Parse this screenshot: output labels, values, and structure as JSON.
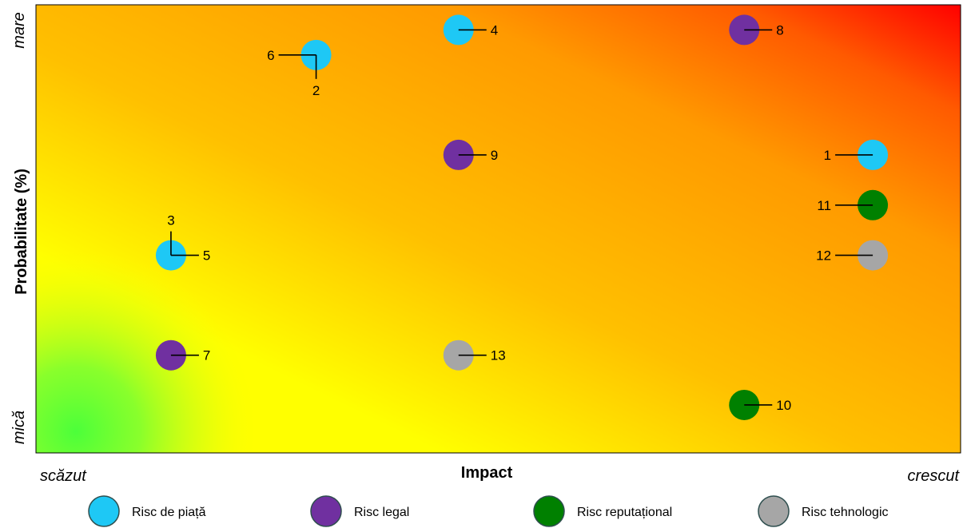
{
  "chart_data": {
    "type": "scatter",
    "title": "",
    "xlabel": "Impact",
    "ylabel": "Probabilitate (%)",
    "x_axis_ends": [
      "scăzut",
      "crescut"
    ],
    "y_axis_ends": [
      "mică",
      "mare"
    ],
    "xlim": [
      0,
      1
    ],
    "ylim": [
      0,
      1
    ],
    "background": "heatmap gradient green (low-low) to yellow to orange to red (high-high)",
    "legend_position": "bottom",
    "categories": [
      {
        "key": "piata",
        "name": "Risc de piață",
        "color": "#1EC8F5"
      },
      {
        "key": "legal",
        "name": "Risc legal",
        "color": "#7030A0"
      },
      {
        "key": "reputational",
        "name": "Risc reputațional",
        "color": "#008000"
      },
      {
        "key": "tehnologic",
        "name": "Risc tehnologic",
        "color": "#A6A6A6"
      }
    ],
    "points": [
      {
        "id": "1",
        "category": "piata",
        "x": 0.905,
        "y": 0.665,
        "label_side": "left"
      },
      {
        "id": "2",
        "category": "piata",
        "x": 0.303,
        "y": 0.888,
        "label_side": "below"
      },
      {
        "id": "3",
        "category": "piata",
        "x": 0.146,
        "y": 0.441,
        "label_side": "above"
      },
      {
        "id": "4",
        "category": "piata",
        "x": 0.457,
        "y": 0.944,
        "label_side": "right"
      },
      {
        "id": "5",
        "category": "piata",
        "x": 0.146,
        "y": 0.441,
        "label_side": "right"
      },
      {
        "id": "6",
        "category": "piata",
        "x": 0.303,
        "y": 0.888,
        "label_side": "left"
      },
      {
        "id": "7",
        "category": "legal",
        "x": 0.146,
        "y": 0.218,
        "label_side": "right"
      },
      {
        "id": "8",
        "category": "legal",
        "x": 0.766,
        "y": 0.944,
        "label_side": "right"
      },
      {
        "id": "9",
        "category": "legal",
        "x": 0.457,
        "y": 0.665,
        "label_side": "right"
      },
      {
        "id": "10",
        "category": "reputational",
        "x": 0.766,
        "y": 0.107,
        "label_side": "right"
      },
      {
        "id": "11",
        "category": "reputational",
        "x": 0.905,
        "y": 0.553,
        "label_side": "left"
      },
      {
        "id": "12",
        "category": "tehnologic",
        "x": 0.905,
        "y": 0.441,
        "label_side": "left"
      },
      {
        "id": "13",
        "category": "tehnologic",
        "x": 0.457,
        "y": 0.218,
        "label_side": "right"
      }
    ]
  }
}
